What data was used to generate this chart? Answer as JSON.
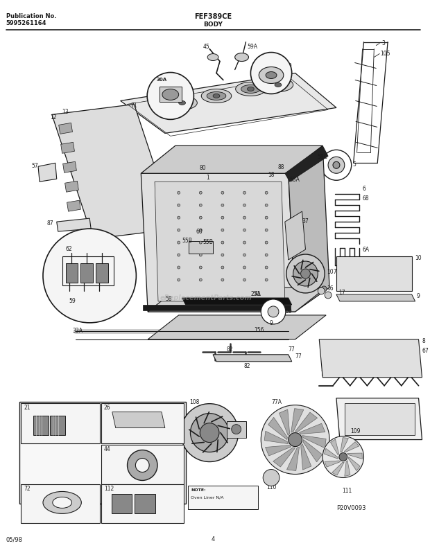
{
  "title": "FEF389CE",
  "subtitle": "BODY",
  "pub_no_label": "Publication No.",
  "pub_no": "5995261164",
  "footer_left": "05/98",
  "footer_center": "4",
  "p20": "P20V0093",
  "bg_color": "#ffffff",
  "line_color": "#1a1a1a",
  "text_color": "#1a1a1a",
  "gray1": "#cccccc",
  "gray2": "#999999",
  "gray3": "#444444",
  "fig_width": 6.2,
  "fig_height": 7.91,
  "dpi": 100
}
